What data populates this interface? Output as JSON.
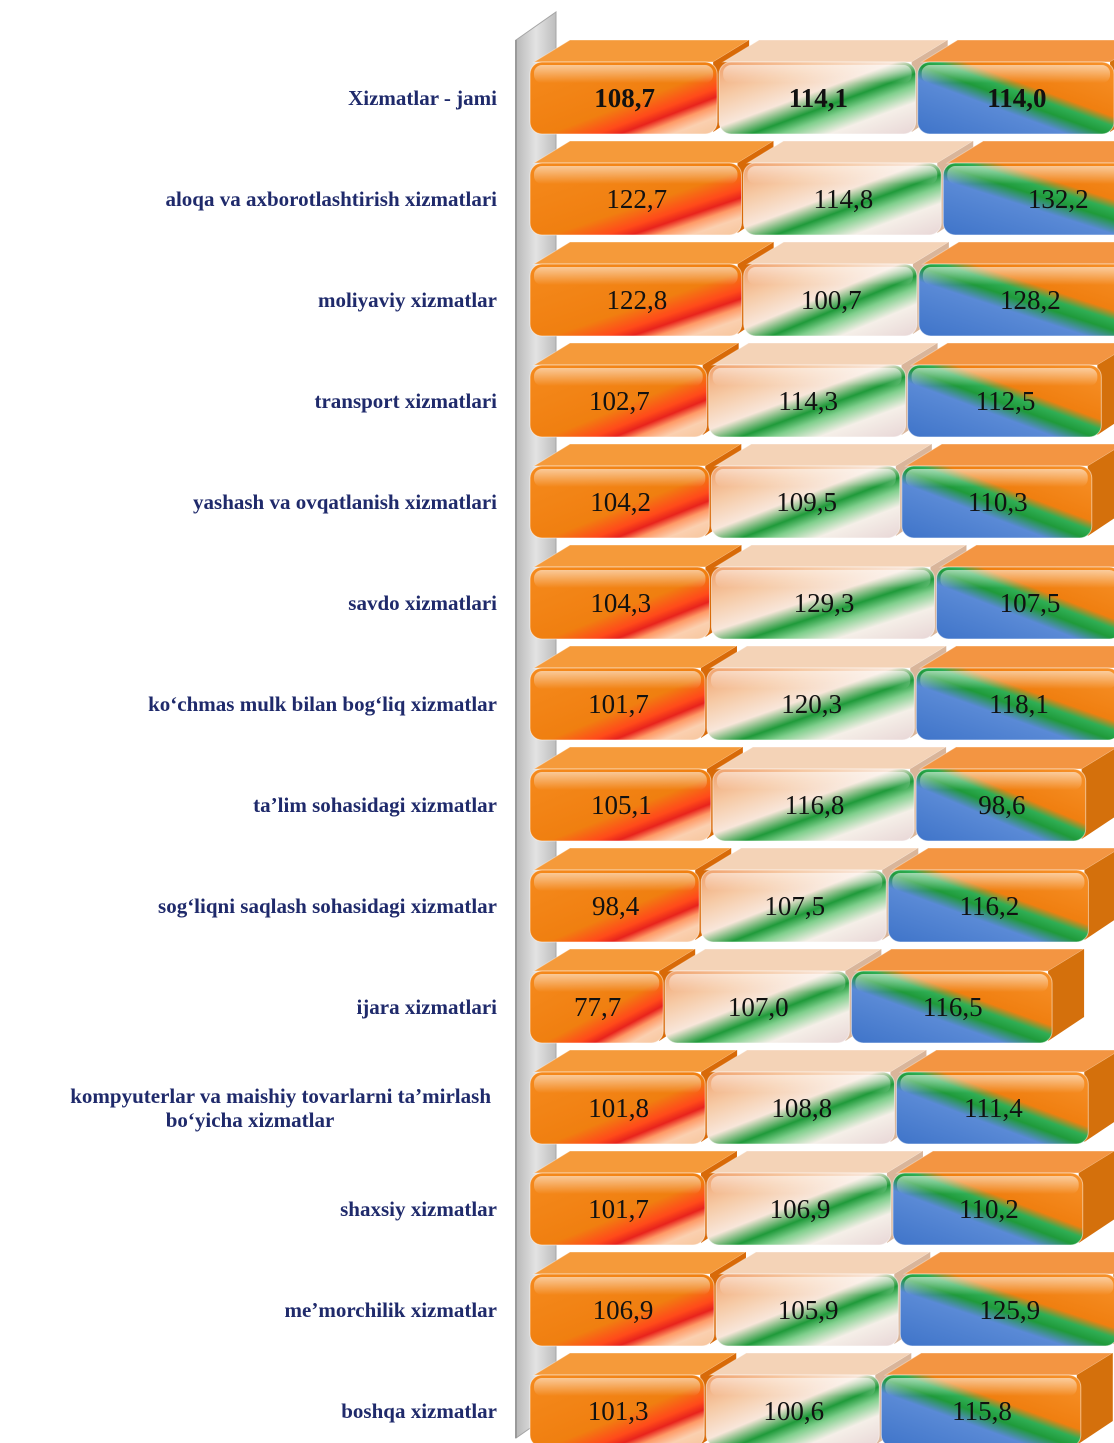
{
  "chart_data": {
    "type": "bar",
    "orientation": "horizontal-stacked",
    "title": "",
    "xlabel": "",
    "ylabel": "",
    "legend": "none",
    "grid": false,
    "categories": [
      [
        "Xizmatlar - jami"
      ],
      [
        "aloqa va axborotlashtirish xizmatlari"
      ],
      [
        "moliyaviy xizmatlar"
      ],
      [
        "transport xizmatlari"
      ],
      [
        "yashash va ovqatlanish xizmatlari"
      ],
      [
        "savdo xizmatlari"
      ],
      [
        "ko‘chmas mulk bilan bog‘liq xizmatlar"
      ],
      [
        "ta’lim sohasidagi xizmatlar"
      ],
      [
        "sog‘liqni saqlash sohasidagi xizmatlar"
      ],
      [
        "ijara xizmatlari"
      ],
      [
        "kompyuterlar va maishiy tovarlarni ta’mirlash",
        "bo‘yicha xizmatlar"
      ],
      [
        "shaxsiy xizmatlar"
      ],
      [
        "me’morchilik xizmatlar"
      ],
      [
        "boshqa xizmatlar"
      ]
    ],
    "series": [
      {
        "values": [
          108.7,
          122.7,
          122.8,
          102.7,
          104.2,
          104.3,
          101.7,
          105.1,
          98.4,
          77.7,
          101.8,
          101.7,
          106.9,
          101.3
        ],
        "labels": [
          "108,7",
          "122,7",
          "122,8",
          "102,7",
          "104,2",
          "104,3",
          "101,7",
          "105,1",
          "98,4",
          "77,7",
          "101,8",
          "101,7",
          "106,9",
          "101,3"
        ]
      },
      {
        "values": [
          114.1,
          114.8,
          100.7,
          114.3,
          109.5,
          129.3,
          120.3,
          116.8,
          107.5,
          107.0,
          108.8,
          106.9,
          105.9,
          100.6
        ],
        "labels": [
          "114,1",
          "114,8",
          "100,7",
          "114,3",
          "109,5",
          "129,3",
          "120,3",
          "116,8",
          "107,5",
          "107,0",
          "108,8",
          "106,9",
          "105,9",
          "100,6"
        ]
      },
      {
        "values": [
          114.0,
          132.2,
          128.2,
          112.5,
          110.3,
          107.5,
          118.1,
          98.6,
          116.2,
          116.5,
          111.4,
          110.2,
          125.9,
          115.8
        ],
        "labels": [
          "114,0",
          "132,2",
          "128,2",
          "112,5",
          "110,3",
          "107,5",
          "118,1",
          "98,6",
          "116,2",
          "116,5",
          "111,4",
          "110,2",
          "125,9",
          "115,8"
        ]
      }
    ],
    "bold_rows": [
      0
    ],
    "colors": {
      "series1_base": "#f07f10",
      "series1_accent": "#e8231c",
      "series2_base": "#f3bd93",
      "series2_accent": "#1f9a3a",
      "series3_base": "#4a7fd0",
      "series3_accent": "#1f9a3a",
      "label_color": "#1f2a6b",
      "axis_color": "#c9c9c9"
    }
  }
}
